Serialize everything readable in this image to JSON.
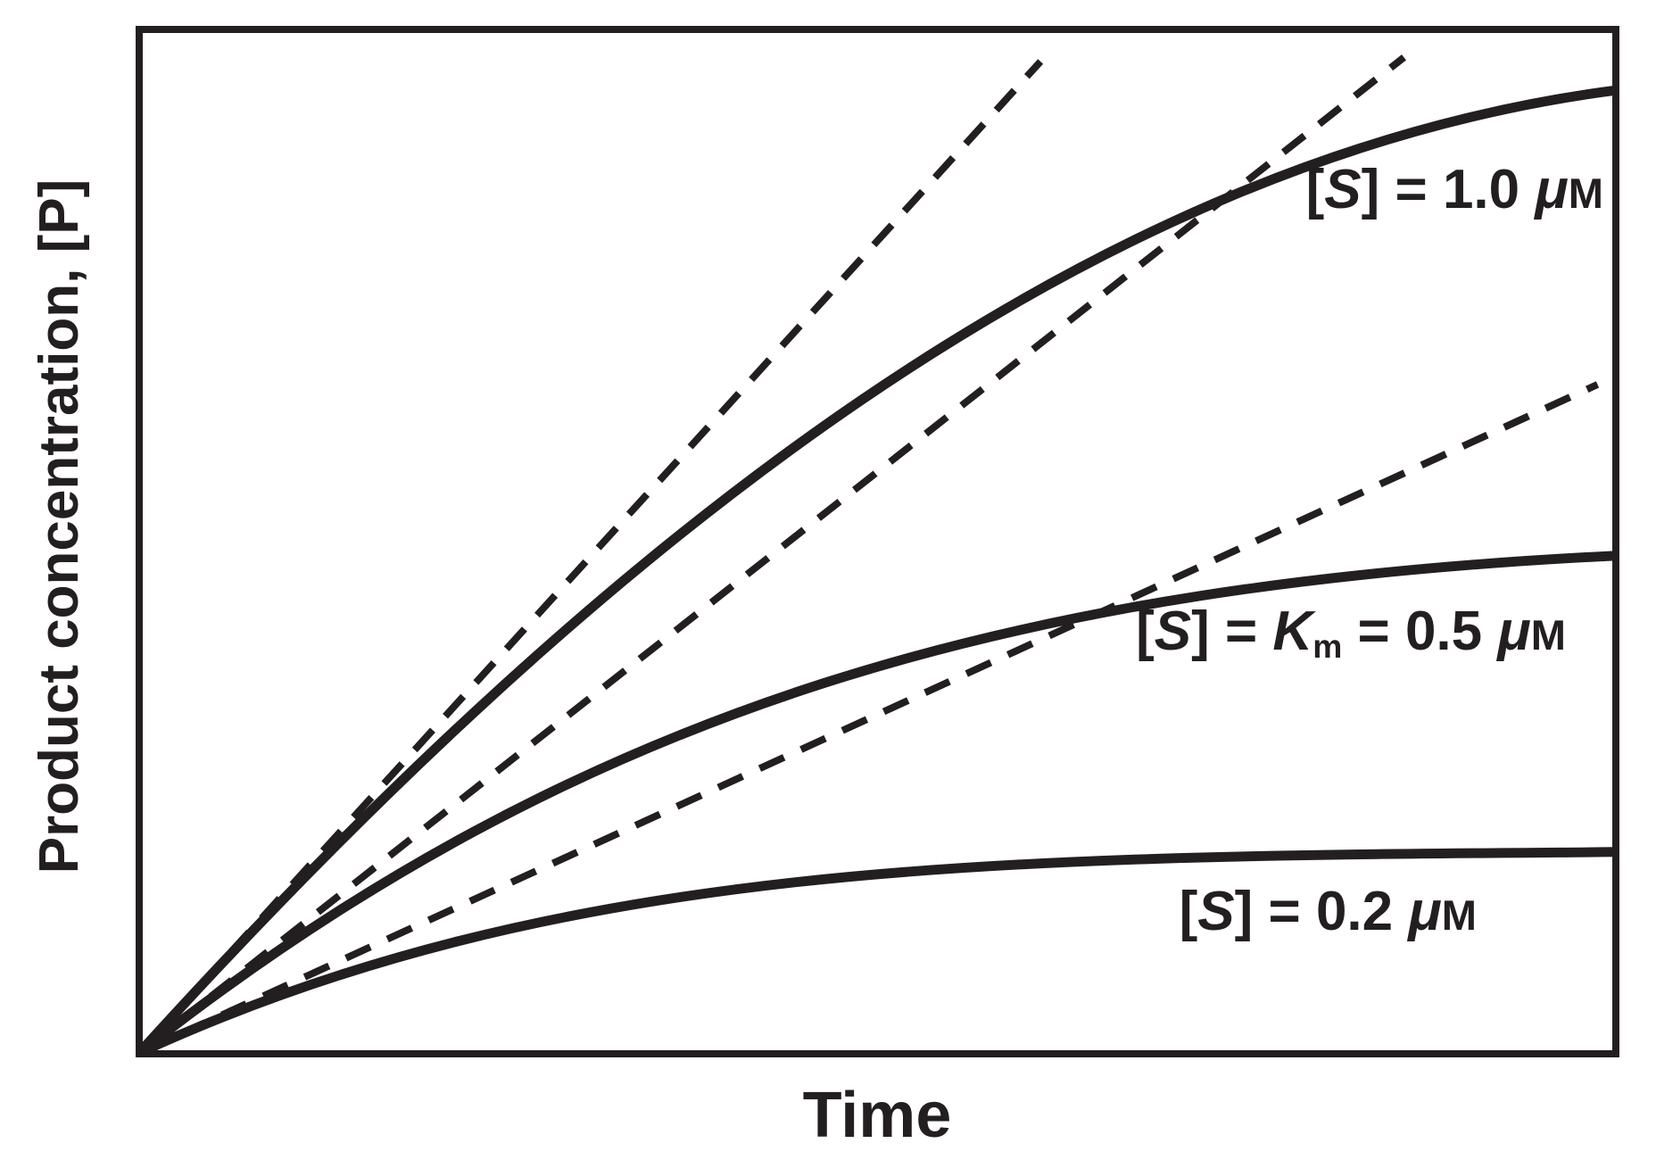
{
  "figure": {
    "ink": "#231f20",
    "background": "#ffffff"
  },
  "axis_labels": {
    "x": "Time",
    "y": "Product concentration, [P]"
  },
  "curve_labels": {
    "high": {
      "open": "[",
      "symbol": "S",
      "rest": "] = 1.0 ",
      "mu": "μ",
      "molar": "M"
    },
    "km": {
      "open": "[",
      "symbol": "S",
      "eq1": "] = ",
      "k": "K",
      "k_sub": "m",
      "eq2": " = 0.5 ",
      "mu": "μ",
      "molar": "M"
    },
    "low": {
      "open": "[",
      "symbol": "S",
      "rest": "] = 0.2 ",
      "mu": "μ",
      "molar": "M"
    }
  },
  "chart_data": {
    "type": "line",
    "title": "",
    "xlabel": "Time",
    "ylabel": "Product concentration, [P]",
    "grid": false,
    "legend_position": "inline-curve-labels",
    "x_axis": {
      "label": "Time",
      "ticks": [],
      "units": "arbitrary (no tick marks shown)"
    },
    "y_axis": {
      "label": "Product concentration, [P]",
      "ticks": [],
      "units": "arbitrary (no tick marks shown)"
    },
    "xlim": [
      0,
      1
    ],
    "ylim": [
      0,
      1
    ],
    "series": [
      {
        "id": "curve-high",
        "role": "progress-curve",
        "line": "solid",
        "label": "[S] = 1.0 μM",
        "substrate_conc_uM": 1.0,
        "bezier": [
          [
            0,
            0
          ],
          [
            0.323,
            0.513
          ],
          [
            0.649,
            0.874
          ],
          [
            1.0,
            0.939
          ]
        ]
      },
      {
        "id": "curve-km",
        "role": "progress-curve",
        "line": "solid",
        "label": "[S] = Km = 0.5 μM",
        "substrate_conc_uM": 0.5,
        "bezier": [
          [
            0,
            0
          ],
          [
            0.302,
            0.343
          ],
          [
            0.6,
            0.457
          ],
          [
            1.0,
            0.485
          ]
        ]
      },
      {
        "id": "curve-low",
        "role": "progress-curve",
        "line": "solid",
        "label": "[S] = 0.2 μM",
        "substrate_conc_uM": 0.2,
        "bezier": [
          [
            0,
            0
          ],
          [
            0.293,
            0.194
          ],
          [
            0.6,
            0.191
          ],
          [
            1.0,
            0.196
          ]
        ]
      },
      {
        "id": "tangent-high",
        "role": "initial-velocity-tangent",
        "line": "dashed",
        "tangent_to": "curve-high",
        "from": [
          0,
          0
        ],
        "to": [
          0.61,
          0.967
        ]
      },
      {
        "id": "tangent-km",
        "role": "initial-velocity-tangent",
        "line": "dashed",
        "tangent_to": "curve-km",
        "from": [
          0,
          0
        ],
        "to": [
          0.856,
          0.971
        ]
      },
      {
        "id": "tangent-low",
        "role": "initial-velocity-tangent",
        "line": "dashed",
        "tangent_to": "curve-low",
        "from": [
          0,
          0
        ],
        "to": [
          0.987,
          0.652
        ]
      }
    ]
  }
}
